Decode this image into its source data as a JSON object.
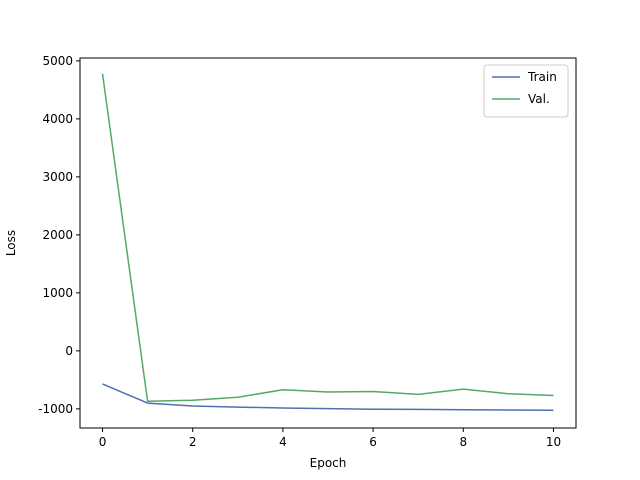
{
  "chart_data": {
    "type": "line",
    "title": "",
    "xlabel": "Epoch",
    "ylabel": "Loss",
    "xlim": [
      -0.5,
      10.5
    ],
    "ylim": [
      -1330,
      5050
    ],
    "xticks": [
      0,
      2,
      4,
      6,
      8,
      10
    ],
    "yticks": [
      -1000,
      0,
      1000,
      2000,
      3000,
      4000,
      5000
    ],
    "grid": false,
    "legend_position": "top-right",
    "x": [
      0,
      1,
      2,
      3,
      4,
      5,
      6,
      7,
      8,
      9,
      10
    ],
    "series": [
      {
        "name": "Train",
        "color": "#4c72b0",
        "values": [
          -570,
          -900,
          -950,
          -970,
          -985,
          -995,
          -1005,
          -1010,
          -1015,
          -1020,
          -1025
        ]
      },
      {
        "name": "Val.",
        "color": "#55a868",
        "values": [
          4780,
          -870,
          -850,
          -800,
          -670,
          -710,
          -700,
          -750,
          -660,
          -740,
          -770
        ]
      }
    ]
  }
}
